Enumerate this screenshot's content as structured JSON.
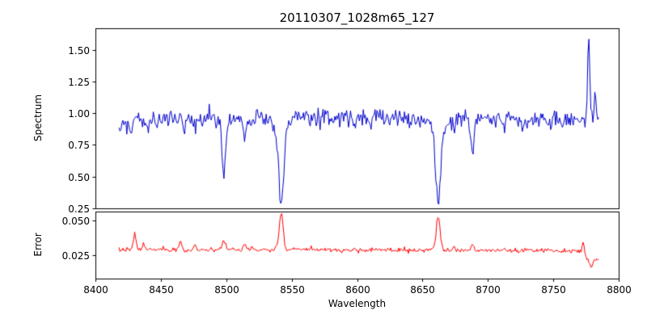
{
  "chart_data": {
    "type": "line",
    "title": "20110307_1028m65_127",
    "xlabel": "Wavelength",
    "xlim": [
      8400,
      8800
    ],
    "xticks": [
      8400,
      8450,
      8500,
      8550,
      8600,
      8650,
      8700,
      8750,
      8800
    ],
    "xtick_labels": [
      "8400",
      "8450",
      "8500",
      "8550",
      "8600",
      "8650",
      "8700",
      "8750",
      "8800"
    ],
    "colors": {
      "background": "#ffffff",
      "axes": "#000000"
    },
    "legend": false,
    "grid": false,
    "panels": [
      {
        "name": "spectrum",
        "ylabel": "Spectrum",
        "ylim": [
          0.25,
          1.67
        ],
        "yticks": [
          0.25,
          0.5,
          0.75,
          1.0,
          1.25,
          1.5
        ],
        "ytick_labels": [
          "0.25",
          "0.50",
          "0.75",
          "1.00",
          "1.25",
          "1.50"
        ],
        "color": "#0000cd",
        "seed": 101,
        "x_start": 8418,
        "x_end": 8785,
        "x_step": 0.75,
        "noise_sigma": 0.034,
        "base_x": [
          8418,
          8435,
          8460,
          8520,
          8620,
          8700,
          8755,
          8770,
          8785
        ],
        "base_y": [
          0.88,
          0.95,
          0.96,
          0.965,
          0.97,
          0.96,
          0.95,
          0.96,
          0.97
        ],
        "absorption_lines": [
          {
            "center": 8440,
            "depth": 0.09,
            "width": 1.0
          },
          {
            "center": 8447,
            "depth": 0.06,
            "width": 0.9
          },
          {
            "center": 8468,
            "depth": 0.11,
            "width": 1.0
          },
          {
            "center": 8476,
            "depth": 0.09,
            "width": 1.0
          },
          {
            "center": 8498,
            "depth": 0.45,
            "width": 1.3
          },
          {
            "center": 8514,
            "depth": 0.15,
            "width": 1.0
          },
          {
            "center": 8519,
            "depth": 0.09,
            "width": 0.9
          },
          {
            "center": 8542,
            "depth": 0.58,
            "width": 1.9
          },
          {
            "center": 8542,
            "depth": 0.1,
            "width": 5.0
          },
          {
            "center": 8582,
            "depth": 0.05,
            "width": 0.9
          },
          {
            "center": 8598,
            "depth": 0.07,
            "width": 1.0
          },
          {
            "center": 8611,
            "depth": 0.05,
            "width": 0.9
          },
          {
            "center": 8648,
            "depth": 0.05,
            "width": 0.9
          },
          {
            "center": 8662,
            "depth": 0.56,
            "width": 1.9
          },
          {
            "center": 8662,
            "depth": 0.09,
            "width": 5.0
          },
          {
            "center": 8674,
            "depth": 0.1,
            "width": 1.0
          },
          {
            "center": 8688,
            "depth": 0.27,
            "width": 1.4
          },
          {
            "center": 8712,
            "depth": 0.07,
            "width": 1.0
          },
          {
            "center": 8727,
            "depth": 0.05,
            "width": 0.9
          },
          {
            "center": 8747,
            "depth": 0.05,
            "width": 0.9
          }
        ],
        "emission_peaks": [
          {
            "center": 8777,
            "height": 0.66,
            "width": 0.8
          },
          {
            "center": 8782,
            "height": 0.2,
            "width": 0.6
          }
        ]
      },
      {
        "name": "error",
        "ylabel": "Error",
        "ylim": [
          0.008,
          0.0565
        ],
        "yticks": [
          0.025,
          0.05
        ],
        "ytick_labels": [
          "0.025",
          "0.050"
        ],
        "color": "#ff0000",
        "seed": 202,
        "x_start": 8418,
        "x_end": 8785,
        "x_step": 0.75,
        "noise_sigma": 0.0008,
        "base_x": [
          8418,
          8770,
          8776,
          8785
        ],
        "base_y": [
          0.029,
          0.0282,
          0.0225,
          0.0225
        ],
        "absorption_lines": [],
        "emission_peaks": [
          {
            "center": 8430,
            "height": 0.0115,
            "width": 1.0
          },
          {
            "center": 8437,
            "height": 0.0035,
            "width": 0.8
          },
          {
            "center": 8452,
            "height": 0.002,
            "width": 0.8
          },
          {
            "center": 8465,
            "height": 0.0065,
            "width": 1.0
          },
          {
            "center": 8476,
            "height": 0.0035,
            "width": 0.8
          },
          {
            "center": 8498,
            "height": 0.0065,
            "width": 1.2
          },
          {
            "center": 8514,
            "height": 0.0045,
            "width": 0.9
          },
          {
            "center": 8520,
            "height": 0.003,
            "width": 0.8
          },
          {
            "center": 8542,
            "height": 0.027,
            "width": 1.5
          },
          {
            "center": 8565,
            "height": 0.002,
            "width": 0.8
          },
          {
            "center": 8598,
            "height": 0.002,
            "width": 0.8
          },
          {
            "center": 8611,
            "height": 0.0015,
            "width": 0.8
          },
          {
            "center": 8648,
            "height": 0.0015,
            "width": 0.8
          },
          {
            "center": 8662,
            "height": 0.0245,
            "width": 1.5
          },
          {
            "center": 8674,
            "height": 0.002,
            "width": 0.8
          },
          {
            "center": 8688,
            "height": 0.004,
            "width": 1.0
          },
          {
            "center": 8712,
            "height": 0.002,
            "width": 0.8
          },
          {
            "center": 8745,
            "height": 0.0015,
            "width": 0.8
          },
          {
            "center": 8773,
            "height": 0.0085,
            "width": 0.8
          },
          {
            "center": 8779,
            "height": -0.006,
            "width": 1.2
          }
        ]
      }
    ]
  }
}
